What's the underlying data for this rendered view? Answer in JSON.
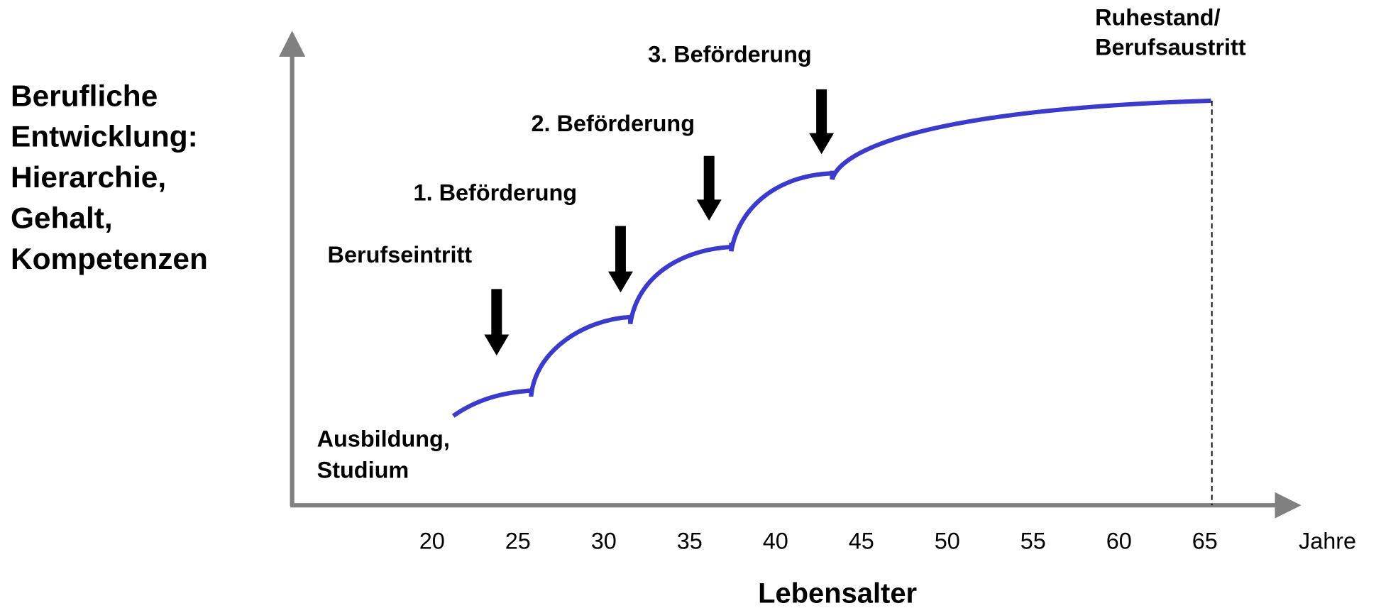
{
  "y_axis_label": [
    "Berufliche",
    "Entwicklung:",
    "Hierarchie,",
    "Gehalt,",
    "Kompetenzen"
  ],
  "x_axis_label": "Lebensalter",
  "x_unit": "Jahre",
  "x_ticks": [
    "20",
    "25",
    "30",
    "35",
    "40",
    "45",
    "50",
    "55",
    "60",
    "65"
  ],
  "annotations": {
    "education": [
      "Ausbildung,",
      "Studium"
    ],
    "entry": "Berufseintritt",
    "promotion_1": "1. Beförderung",
    "promotion_2": "2. Beförderung",
    "promotion_3": "3. Beförderung",
    "retirement": [
      "Ruhestand/",
      "Berufsaustritt"
    ]
  }
}
